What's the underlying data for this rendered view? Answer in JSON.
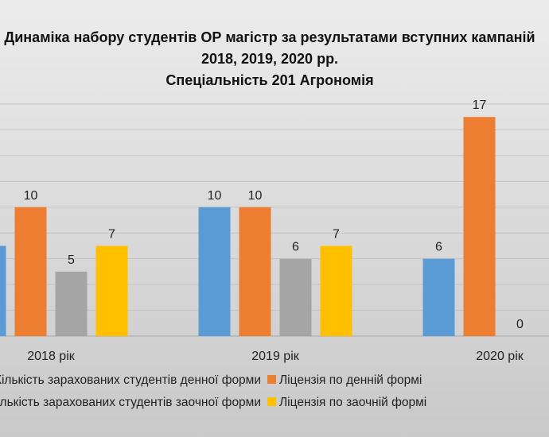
{
  "chart_data": {
    "type": "bar",
    "title_lines": [
      "Динаміка набору студентів ОР магістр за результатами вступних кампаній",
      "2018, 2019, 2020 рр.",
      "Спеціальність 201 Агрономія"
    ],
    "categories": [
      "2018 рік",
      "2019 рік",
      "2020 рік"
    ],
    "series": [
      {
        "name": "Кількість зарахованих студентів денної форми",
        "color": "#5b9bd5",
        "values": [
          7,
          10,
          6
        ]
      },
      {
        "name": "Ліцензія по денній формі",
        "color": "#ed7d31",
        "values": [
          10,
          10,
          17
        ]
      },
      {
        "name": "Кількість зарахованих студентів заочної форми",
        "color": "#a5a5a5",
        "values": [
          5,
          6,
          0
        ]
      },
      {
        "name": "Ліцензія по заочній формі",
        "color": "#ffc000",
        "values": [
          7,
          7,
          null
        ]
      }
    ],
    "xlabel": "",
    "ylabel": "",
    "ylim": [
      0,
      18
    ],
    "grid": true,
    "legend": "bottom"
  }
}
